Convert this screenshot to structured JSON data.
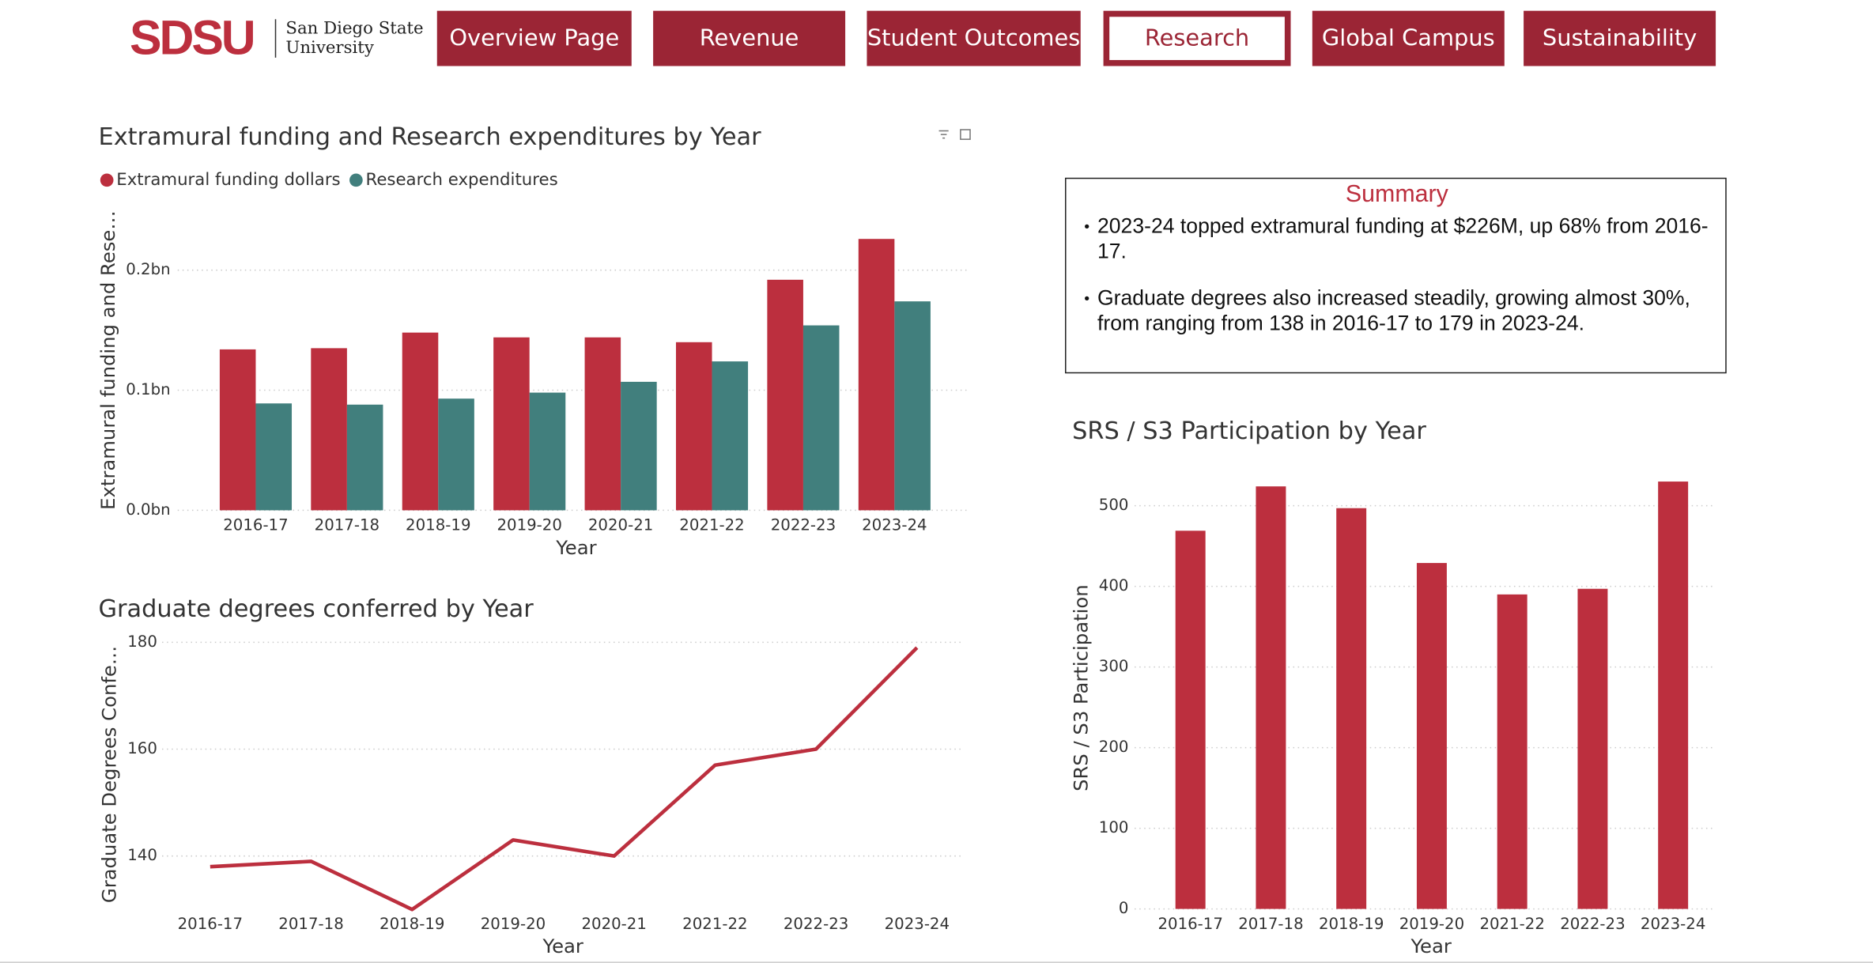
{
  "header": {
    "logo": "SDSU",
    "university": "San Diego State University"
  },
  "nav": [
    "Overview Page",
    "Revenue",
    "Student Outcomes",
    "Research",
    "Global Campus",
    "Sustainability"
  ],
  "active_nav": 3,
  "summary": {
    "title": "Summary",
    "bullets": [
      "2023-24 topped extramural funding at $226M, up 68% from 2016-17.",
      "Graduate degrees also increased steadily, growing almost 30%, from ranging from 138 in 2016-17 to 179 in 2023-24."
    ]
  },
  "chart_data": [
    {
      "type": "bar",
      "title": "Extramural funding and Research expenditures by Year",
      "x_label": "Year",
      "y_label": "Extramural funding and Rese…",
      "categories": [
        "2016-17",
        "2017-18",
        "2018-19",
        "2019-20",
        "2020-21",
        "2021-22",
        "2022-23",
        "2023-24"
      ],
      "series": [
        {
          "name": "Extramural funding dollars",
          "color": "#bc2f3e",
          "values": [
            0.134,
            0.135,
            0.148,
            0.144,
            0.144,
            0.14,
            0.192,
            0.226
          ]
        },
        {
          "name": "Research expenditures",
          "color": "#417f7d",
          "values": [
            0.089,
            0.088,
            0.093,
            0.098,
            0.107,
            0.124,
            0.154,
            0.174
          ]
        }
      ],
      "ylim": [
        0,
        0.25
      ],
      "yticks": [
        {
          "value": 0,
          "label": "0.0bn"
        },
        {
          "value": 0.1,
          "label": "0.1bn"
        },
        {
          "value": 0.2,
          "label": "0.2bn"
        }
      ],
      "grid": true,
      "legend": "top-left"
    },
    {
      "type": "line",
      "title": "Graduate degrees conferred by Year",
      "x_label": "Year",
      "y_label": "Graduate Degrees Confe…",
      "categories": [
        "2016-17",
        "2017-18",
        "2018-19",
        "2019-20",
        "2020-21",
        "2021-22",
        "2022-23",
        "2023-24"
      ],
      "values": [
        138,
        139,
        130,
        143,
        140,
        157,
        160,
        179
      ],
      "color": "#bc2f3e",
      "ylim": [
        129,
        181
      ],
      "yticks": [
        140,
        160,
        180
      ],
      "grid": true
    },
    {
      "type": "bar",
      "title": "SRS / S3 Participation by Year",
      "x_label": "Year",
      "y_label": "SRS / S3 Participation",
      "categories": [
        "2016-17",
        "2017-18",
        "2018-19",
        "2019-20",
        "2021-22",
        "2022-23",
        "2023-24"
      ],
      "values": [
        469,
        524,
        497,
        429,
        390,
        397,
        530
      ],
      "color": "#bc2f3e",
      "ylim": [
        0,
        545
      ],
      "yticks": [
        0,
        100,
        200,
        300,
        400,
        500
      ],
      "grid": true
    }
  ]
}
